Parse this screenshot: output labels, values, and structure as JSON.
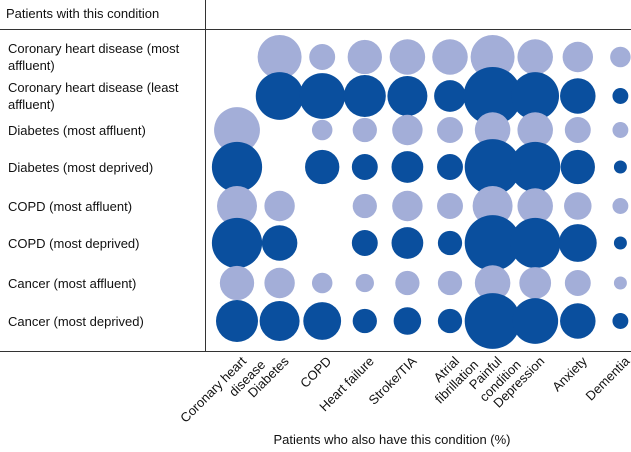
{
  "chart_data": {
    "type": "bubble-matrix",
    "y_label": "Patients with this condition",
    "x_label": "Patients who also have this condition (%)",
    "categories": [
      "Coronary heart disease",
      "Diabetes",
      "COPD",
      "Heart failure",
      "Stroke/TIA",
      "Atrial fibrillation",
      "Painful condition",
      "Depression",
      "Anxiety",
      "Dementia"
    ],
    "series": [
      {
        "name": "Coronary heart disease (most affluent)",
        "color": "#a3aed8",
        "values": [
          null,
          23,
          8,
          14,
          15,
          15,
          23,
          15,
          11,
          5
        ]
      },
      {
        "name": "Coronary heart disease (least affluent)",
        "color": "#0a4f9e",
        "values": [
          null,
          27,
          25,
          21,
          19,
          12,
          40,
          27,
          15,
          3
        ]
      },
      {
        "name": "Diabetes (most affluent)",
        "color": "#a3aed8",
        "values": [
          25,
          null,
          5,
          7,
          11,
          8,
          15,
          15,
          8,
          3
        ]
      },
      {
        "name": "Diabetes (most deprived)",
        "color": "#0a4f9e",
        "values": [
          30,
          null,
          14,
          8,
          12,
          8,
          37,
          30,
          14,
          2
        ]
      },
      {
        "name": "COPD (most affluent)",
        "color": "#a3aed8",
        "values": [
          19,
          11,
          null,
          7,
          11,
          8,
          19,
          15,
          9,
          3
        ]
      },
      {
        "name": "COPD (most deprived)",
        "color": "#0a4f9e",
        "values": [
          30,
          15,
          null,
          8,
          12,
          7,
          37,
          30,
          17,
          2
        ]
      },
      {
        "name": "Cancer (most affluent)",
        "color": "#a3aed8",
        "values": [
          14,
          11,
          5,
          4,
          7,
          7,
          15,
          12,
          8,
          2
        ]
      },
      {
        "name": "Cancer (most deprived)",
        "color": "#0a4f9e",
        "values": [
          21,
          19,
          17,
          7,
          9,
          7,
          37,
          25,
          15,
          3
        ]
      }
    ]
  }
}
